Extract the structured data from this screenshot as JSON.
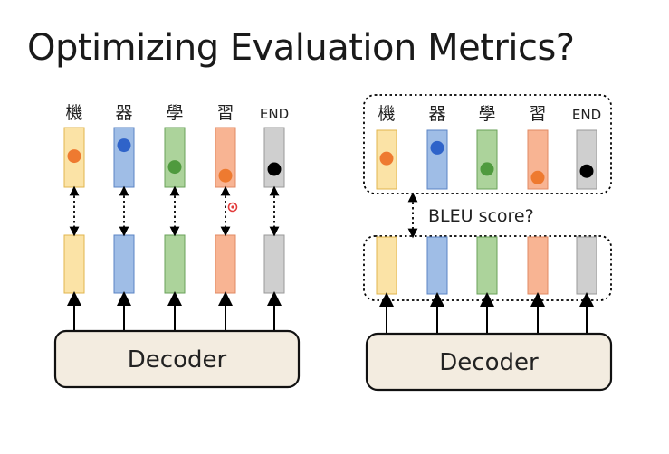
{
  "title": "Optimizing Evaluation Metrics?",
  "tokens": [
    "機",
    "器",
    "學",
    "習",
    "END"
  ],
  "decoder_label": "Decoder",
  "metric_label": "BLEU score?",
  "colors": {
    "token_fills": [
      "#fbe3a6",
      "#9fbde6",
      "#acd39b",
      "#f8b493",
      "#cfcfcf"
    ],
    "token_strokes": [
      "#e0b64e",
      "#5b84c4",
      "#6aa25a",
      "#e08a63",
      "#9a9a9a"
    ],
    "dot_colors": [
      "#ee7a30",
      "#2f63c9",
      "#4f9a3e",
      "#ee7a30",
      "#000000"
    ],
    "decoder_fill": "#f3ece0",
    "cursor": "#e23b3b"
  },
  "dot_levels": [
    0.45,
    0.2,
    0.7,
    0.9,
    0.75
  ]
}
